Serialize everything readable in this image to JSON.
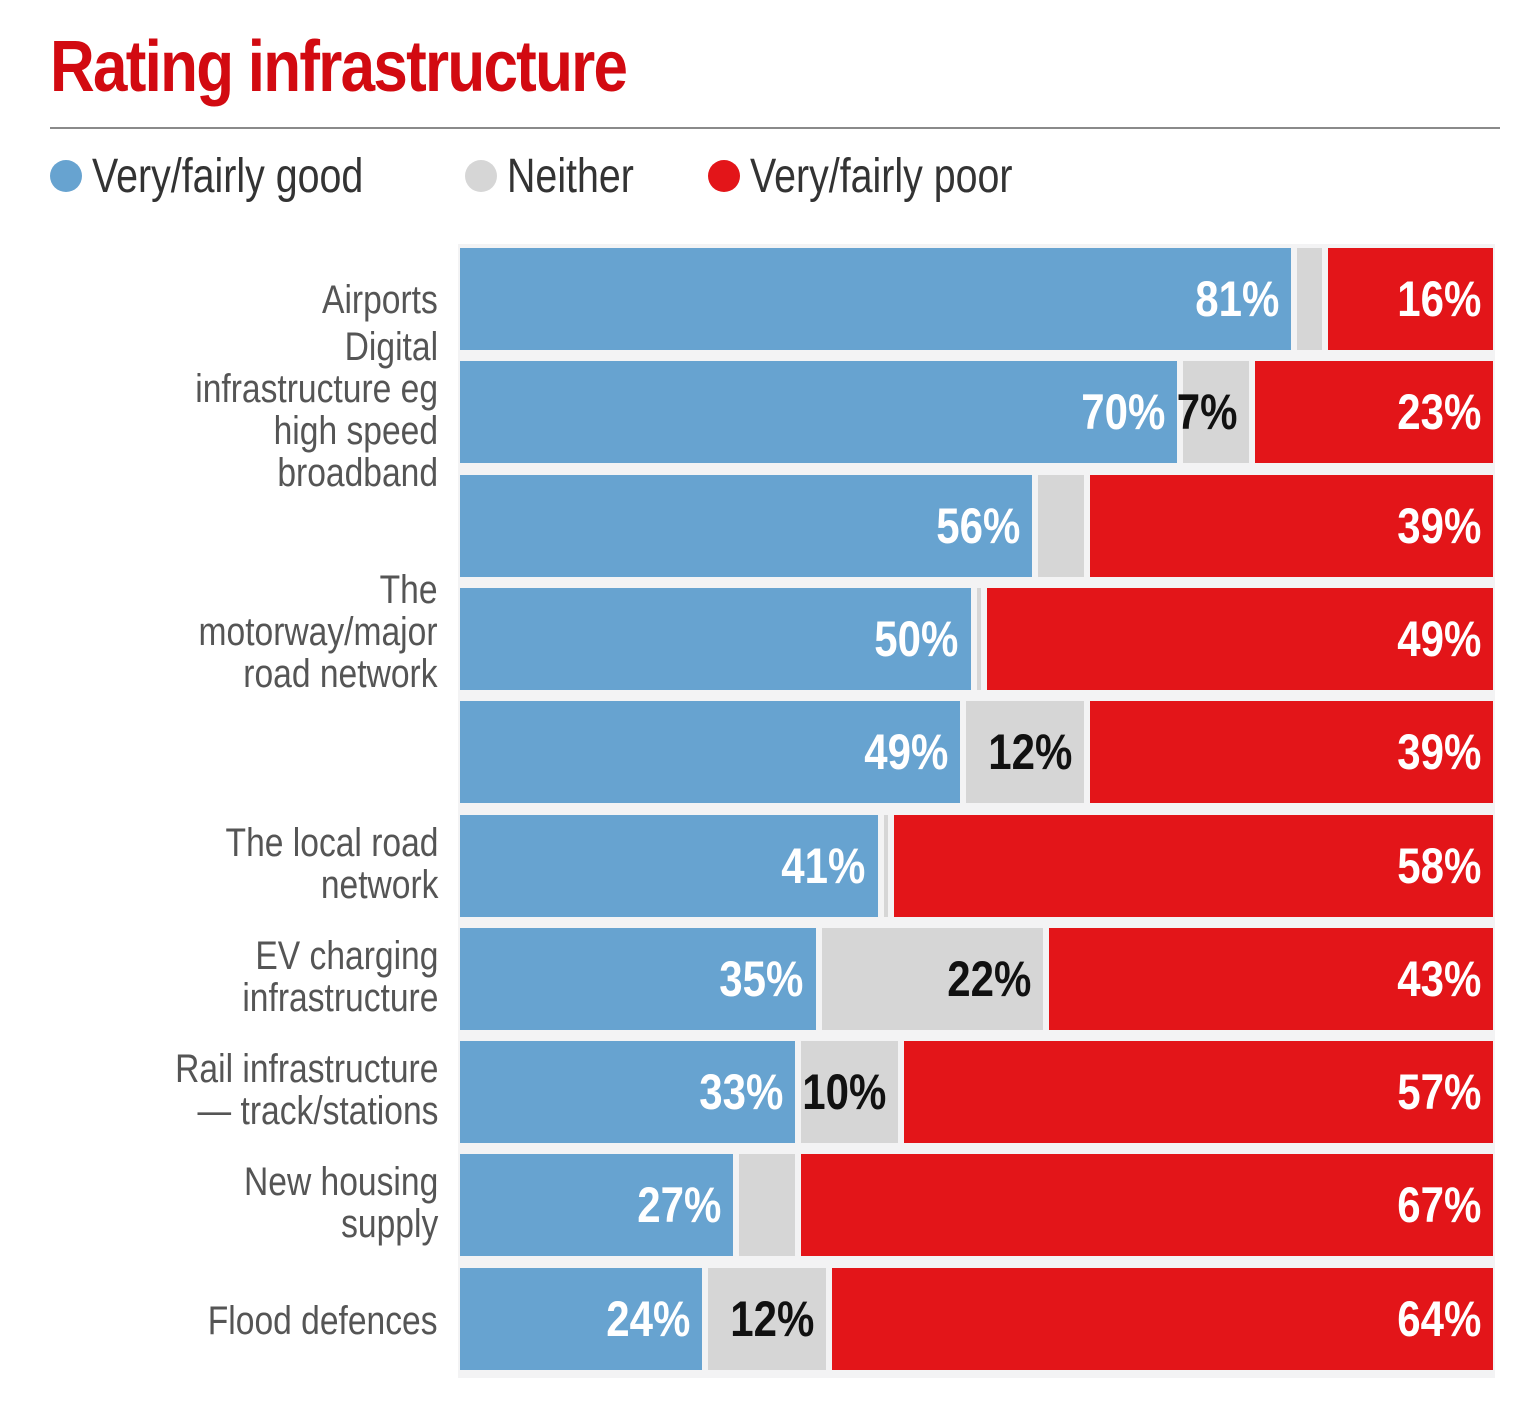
{
  "header": {
    "title": "Rating infrastructure"
  },
  "legend": [
    {
      "label": "Very/fairly good",
      "color": "#67a3d0"
    },
    {
      "label": "Neither",
      "color": "#d6d6d6"
    },
    {
      "label": "Very/fairly poor",
      "color": "#e31519"
    }
  ],
  "chart_data": {
    "type": "bar",
    "orientation": "horizontal",
    "stacked": true,
    "percent": true,
    "title": "Rating infrastructure",
    "xlabel": "",
    "ylabel": "",
    "xlim": [
      0,
      100
    ],
    "legend_position": "top-left",
    "grid": false,
    "categories": [
      "Airports",
      "Digital infrastructure eg high speed broadband",
      "",
      "The motorway/major road network",
      "",
      "The local road network",
      "EV charging infrastructure",
      "Rail infrastructure — track/stations",
      "New housing supply",
      "Flood defences"
    ],
    "category_labels_display": [
      "Airports",
      "Digital\ninfrastructure eg\nhigh speed\nbroadband",
      "",
      "The\nmotorway/major\nroad network",
      "",
      "The local road\nnetwork",
      "EV charging\ninfrastructure",
      "Rail infrastructure\n— track/stations",
      "New housing\nsupply",
      "Flood defences"
    ],
    "series": [
      {
        "name": "Very/fairly good",
        "color": "#67a3d0",
        "label_color": "#ffffff",
        "values": [
          81,
          70,
          56,
          50,
          49,
          41,
          35,
          33,
          27,
          24
        ],
        "labels": [
          "81%",
          "70%",
          "56%",
          "50%",
          "49%",
          "41%",
          "35%",
          "33%",
          "27%",
          "24%"
        ]
      },
      {
        "name": "Neither",
        "color": "#d6d6d6",
        "label_color": "#111111",
        "values": [
          3,
          7,
          5,
          1,
          12,
          1,
          22,
          10,
          6,
          12
        ],
        "labels": [
          "",
          "7%",
          "",
          "",
          "12%",
          "",
          "22%",
          "10%",
          "",
          "12%"
        ]
      },
      {
        "name": "Very/fairly poor",
        "color": "#e31519",
        "label_color": "#ffffff",
        "values": [
          16,
          23,
          39,
          49,
          39,
          58,
          43,
          57,
          67,
          64
        ],
        "labels": [
          "16%",
          "23%",
          "39%",
          "49%",
          "39%",
          "58%",
          "43%",
          "57%",
          "67%",
          "64%"
        ]
      }
    ]
  }
}
